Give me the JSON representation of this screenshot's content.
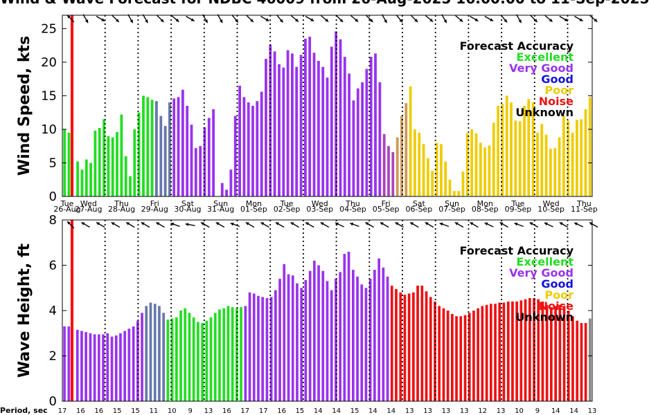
{
  "title": "Wind & Wave Forecast for NDBC 46009 from 26-Aug-2025 16:00:00 to 11-Sep-2025",
  "palette": {
    "Excellent": "#22dd22",
    "Very Good": "#9933ee",
    "Good": "#1111dd",
    "Poor": "#f0cc00",
    "Noise": "#ee1111",
    "Unknown": "#000000",
    "Mid1": "#6677aa",
    "Mid2": "#cc9955",
    "Mid3": "#aa44bb",
    "Axis": "#000000",
    "NowLine": "#ff0000"
  },
  "legend": {
    "title": "Forecast Accuracy",
    "items": [
      {
        "label": "Excellent",
        "key": "Excellent"
      },
      {
        "label": "Very Good",
        "key": "Very Good"
      },
      {
        "label": "Good",
        "key": "Good"
      },
      {
        "label": "Poor",
        "key": "Poor"
      },
      {
        "label": "Noise",
        "key": "Noise"
      },
      {
        "label": "Unknown",
        "key": "Unknown"
      }
    ]
  },
  "days": [
    {
      "day": "Tue",
      "date": "26-Aug"
    },
    {
      "day": "Wed",
      "date": "27-Aug"
    },
    {
      "day": "Thu",
      "date": "28-Aug"
    },
    {
      "day": "Fri",
      "date": "29-Aug"
    },
    {
      "day": "Sat",
      "date": "30-Aug"
    },
    {
      "day": "Sun",
      "date": "31-Aug"
    },
    {
      "day": "Mon",
      "date": "01-Sep"
    },
    {
      "day": "Tue",
      "date": "02-Sep"
    },
    {
      "day": "Wed",
      "date": "03-Sep"
    },
    {
      "day": "Thu",
      "date": "04-Sep"
    },
    {
      "day": "Fri",
      "date": "05-Sep"
    },
    {
      "day": "Sat",
      "date": "06-Sep"
    },
    {
      "day": "Sun",
      "date": "07-Sep"
    },
    {
      "day": "Mon",
      "date": "08-Sep"
    },
    {
      "day": "Tue",
      "date": "09-Sep"
    },
    {
      "day": "Wed",
      "date": "10-Sep"
    },
    {
      "day": "Thu",
      "date": "11-Sep"
    }
  ],
  "period_label": "Period, sec",
  "periods": [
    "17",
    "16",
    "16",
    "15",
    "15",
    "11",
    "10",
    "9",
    "13",
    "16",
    "17",
    "17",
    "16",
    "15",
    "14",
    "14",
    "15",
    "14",
    "14",
    "13",
    "13",
    "13",
    "13",
    "12",
    "13",
    "10",
    "9",
    "14",
    "14",
    "13"
  ],
  "chart_data": [
    {
      "name": "wind",
      "type": "bar",
      "ylabel": "Wind Speed, kts",
      "ylim": [
        0,
        27
      ],
      "yticks": [
        0,
        5,
        10,
        15,
        20,
        25
      ],
      "values": [
        10,
        9.5,
        null,
        5.2,
        4,
        5.5,
        5,
        9.8,
        10.2,
        11.5,
        9,
        8.8,
        9.6,
        12.2,
        6,
        3,
        10,
        12.5,
        15,
        14.8,
        14.4,
        14.2,
        12,
        10.5,
        14,
        14.6,
        14.8,
        15.9,
        13.5,
        10.7,
        7.2,
        7.5,
        10.3,
        11.7,
        13,
        null,
        2,
        1,
        4,
        12,
        16.5,
        14.8,
        14,
        13.5,
        14.2,
        15.6,
        20.5,
        22.6,
        21.6,
        19.7,
        19.2,
        21.8,
        21.3,
        19.3,
        21.1,
        23.5,
        23.8,
        21.4,
        20.2,
        19.3,
        17.7,
        22.3,
        24.6,
        23.4,
        20.8,
        18.3,
        14.3,
        16.1,
        17,
        19,
        20.8,
        21.3,
        17,
        9.3,
        7.5,
        6.6,
        8.8,
        12,
        13.9,
        16.4,
        10,
        9.5,
        7.8,
        5.7,
        3.8,
        8,
        7.8,
        5.2,
        2.5,
        0.8,
        0.8,
        3.7,
        9.4,
        10,
        9.4,
        8,
        7.3,
        7.6,
        11,
        13.5,
        13.8,
        15,
        14,
        11.3,
        11.2,
        13.5,
        14.5,
        14,
        9.5,
        10.8,
        9.2,
        7.1,
        7.2,
        8.8,
        12,
        11.3,
        9.5,
        11.4,
        11.5,
        13,
        14.8
      ],
      "quality": [
        "Excellent",
        "Excellent",
        "Excellent",
        "Excellent",
        "Excellent",
        "Excellent",
        "Excellent",
        "Excellent",
        "Excellent",
        "Excellent",
        "Excellent",
        "Excellent",
        "Excellent",
        "Excellent",
        "Excellent",
        "Excellent",
        "Excellent",
        "Excellent",
        "Excellent",
        "Excellent",
        "Excellent",
        "Mid1",
        "Mid1",
        "Mid1",
        "Mid1",
        "Very Good",
        "Very Good",
        "Very Good",
        "Very Good",
        "Very Good",
        "Very Good",
        "Very Good",
        "Very Good",
        "Very Good",
        "Very Good",
        "Very Good",
        "Very Good",
        "Very Good",
        "Very Good",
        "Very Good",
        "Very Good",
        "Very Good",
        "Very Good",
        "Very Good",
        "Very Good",
        "Very Good",
        "Very Good",
        "Very Good",
        "Very Good",
        "Very Good",
        "Very Good",
        "Very Good",
        "Very Good",
        "Very Good",
        "Very Good",
        "Very Good",
        "Very Good",
        "Very Good",
        "Very Good",
        "Very Good",
        "Very Good",
        "Very Good",
        "Very Good",
        "Very Good",
        "Very Good",
        "Very Good",
        "Very Good",
        "Very Good",
        "Very Good",
        "Very Good",
        "Very Good",
        "Very Good",
        "Very Good",
        "Mid3",
        "Mid3",
        "Mid3",
        "Mid2",
        "Mid2",
        "Mid2",
        "Poor",
        "Poor",
        "Poor",
        "Poor",
        "Poor",
        "Poor",
        "Poor",
        "Poor",
        "Poor",
        "Poor",
        "Poor",
        "Poor",
        "Poor",
        "Poor",
        "Poor",
        "Poor",
        "Poor",
        "Poor",
        "Poor",
        "Poor",
        "Poor",
        "Poor",
        "Poor",
        "Poor",
        "Poor",
        "Poor",
        "Poor",
        "Poor",
        "Poor",
        "Poor",
        "Poor",
        "Poor",
        "Poor",
        "Poor",
        "Poor",
        "Poor",
        "Poor",
        "Poor",
        "Poor",
        "Poor",
        "Poor",
        "Poor",
        "Poor",
        "Poor"
      ],
      "arrows": [
        135,
        300,
        330,
        315,
        300,
        300,
        315,
        320,
        330,
        300,
        300,
        310,
        315,
        330,
        310,
        320,
        330,
        320,
        315,
        320,
        315,
        300,
        310,
        315,
        320,
        300,
        320,
        330,
        330,
        310,
        300,
        315,
        320,
        330,
        330,
        320
      ]
    },
    {
      "name": "wave",
      "type": "bar",
      "ylabel": "Wave Height, ft",
      "ylim": [
        0,
        8
      ],
      "yticks": [
        0,
        2,
        4,
        6,
        8
      ],
      "values": [
        3.3,
        3.3,
        null,
        3.15,
        3.1,
        3.05,
        3.0,
        2.95,
        2.95,
        2.95,
        3.0,
        2.85,
        2.9,
        3.0,
        3.1,
        3.2,
        3.3,
        3.55,
        3.9,
        4.2,
        4.35,
        4.3,
        4.2,
        3.9,
        3.6,
        3.65,
        3.7,
        4.0,
        4.1,
        3.9,
        3.7,
        3.5,
        3.45,
        3.55,
        3.7,
        3.9,
        4.05,
        4.1,
        4.2,
        4.15,
        4.1,
        4.15,
        4.2,
        4.8,
        4.75,
        4.65,
        4.6,
        4.55,
        4.6,
        4.9,
        5.4,
        6.05,
        5.6,
        5.55,
        5.2,
        5.0,
        5.35,
        5.75,
        6.2,
        6.0,
        5.75,
        5.3,
        4.9,
        5.4,
        5.7,
        6.5,
        6.6,
        5.8,
        5.5,
        5.15,
        5.0,
        5.4,
        5.8,
        6.3,
        5.9,
        5.5,
        5.1,
        4.95,
        4.8,
        4.7,
        4.75,
        4.8,
        5.1,
        5.1,
        4.85,
        4.6,
        4.4,
        4.2,
        4.1,
        4.0,
        3.85,
        3.75,
        3.75,
        3.8,
        3.9,
        4.0,
        4.1,
        4.2,
        4.25,
        4.3,
        4.3,
        4.35,
        4.35,
        4.4,
        4.4,
        4.4,
        4.45,
        4.5,
        4.55,
        4.55,
        4.5,
        4.4,
        4.25,
        4.15,
        4.2,
        4.25,
        4.2,
        4.0,
        3.75,
        3.55,
        3.45,
        3.45,
        3.65
      ],
      "quality": [
        "Very Good",
        "Very Good",
        "Very Good",
        "Very Good",
        "Very Good",
        "Very Good",
        "Very Good",
        "Very Good",
        "Very Good",
        "Very Good",
        "Very Good",
        "Very Good",
        "Very Good",
        "Very Good",
        "Very Good",
        "Very Good",
        "Very Good",
        "Very Good",
        "Very Good",
        "Mid1",
        "Mid1",
        "Mid1",
        "Mid1",
        "Mid1",
        "Excellent",
        "Excellent",
        "Excellent",
        "Excellent",
        "Excellent",
        "Excellent",
        "Excellent",
        "Excellent",
        "Excellent",
        "Excellent",
        "Excellent",
        "Excellent",
        "Excellent",
        "Excellent",
        "Excellent",
        "Excellent",
        "Excellent",
        "Excellent",
        "Very Good",
        "Very Good",
        "Very Good",
        "Very Good",
        "Very Good",
        "Very Good",
        "Very Good",
        "Very Good",
        "Very Good",
        "Very Good",
        "Very Good",
        "Very Good",
        "Very Good",
        "Very Good",
        "Very Good",
        "Very Good",
        "Very Good",
        "Very Good",
        "Very Good",
        "Very Good",
        "Very Good",
        "Very Good",
        "Very Good",
        "Very Good",
        "Very Good",
        "Very Good",
        "Very Good",
        "Very Good",
        "Very Good",
        "Very Good",
        "Very Good",
        "Very Good",
        "Very Good",
        "Very Good",
        "Noise",
        "Noise",
        "Noise",
        "Noise",
        "Noise",
        "Noise",
        "Noise",
        "Noise",
        "Noise",
        "Noise",
        "Noise",
        "Noise",
        "Noise",
        "Noise",
        "Noise",
        "Noise",
        "Noise",
        "Noise",
        "Noise",
        "Noise",
        "Noise",
        "Noise",
        "Noise",
        "Noise",
        "Noise",
        "Noise",
        "Noise",
        "Noise",
        "Noise",
        "Noise",
        "Noise",
        "Noise",
        "Noise",
        "Noise",
        "Noise",
        "Noise",
        "Noise",
        "Noise",
        "Noise",
        "Noise",
        "Noise",
        "Noise",
        "Noise",
        "Noise",
        "Noise",
        "Noise"
      ],
      "arrows": [
        135,
        150,
        150,
        150,
        150,
        150,
        150,
        160,
        170,
        150,
        150,
        160,
        150,
        150,
        150,
        150,
        150,
        150,
        155,
        160,
        150,
        150,
        150,
        150,
        150,
        160,
        150,
        150,
        155,
        150,
        160,
        150,
        155,
        150,
        155,
        150
      ]
    }
  ]
}
